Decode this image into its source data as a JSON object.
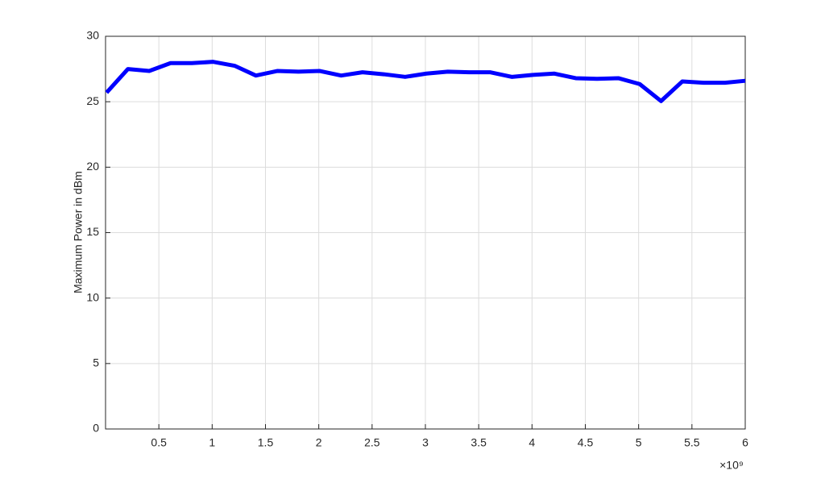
{
  "chart_data": {
    "type": "line",
    "y_label": "Maximum Power in dBm",
    "x_multiplier_label": "×10⁹",
    "x": [
      0.01,
      0.21,
      0.41,
      0.61,
      0.81,
      1.01,
      1.21,
      1.41,
      1.61,
      1.81,
      2.01,
      2.21,
      2.41,
      2.61,
      2.81,
      3.01,
      3.21,
      3.41,
      3.61,
      3.81,
      4.01,
      4.21,
      4.41,
      4.61,
      4.81,
      5.01,
      5.21,
      5.41,
      5.61,
      5.81,
      6.0
    ],
    "series": [
      {
        "color": "#0000ff",
        "values": [
          25.7,
          27.5,
          27.35,
          27.95,
          27.95,
          28.05,
          27.75,
          27.0,
          27.35,
          27.3,
          27.35,
          27.0,
          27.25,
          27.1,
          26.9,
          27.15,
          27.3,
          27.25,
          27.25,
          26.9,
          27.05,
          27.15,
          26.8,
          26.75,
          26.8,
          26.35,
          25.05,
          26.55,
          26.45,
          26.45,
          26.6
        ]
      }
    ],
    "xlim": [
      0,
      6
    ],
    "xticks": [
      0.5,
      1,
      1.5,
      2,
      2.5,
      3,
      3.5,
      4,
      4.5,
      5,
      5.5,
      6
    ],
    "ylim": [
      0,
      30
    ],
    "yticks": [
      0,
      5,
      10,
      15,
      20,
      25,
      30
    ],
    "grid": true
  }
}
